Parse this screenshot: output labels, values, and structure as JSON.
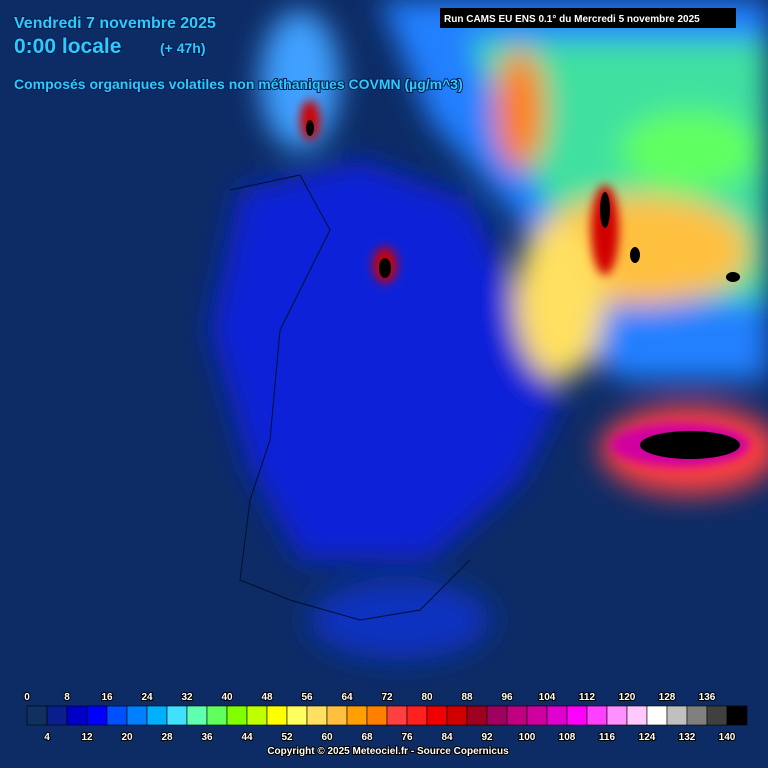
{
  "header": {
    "date": "Vendredi 7 novembre 2025",
    "time": "0:00 locale",
    "lead": "(+ 47h)",
    "run": "Run CAMS EU ENS 0.1° du Mercredi 5 novembre 2025",
    "parameter": "Composés organiques volatiles non méthaniques COVMN (µg/m^3)"
  },
  "colorbar": {
    "ticks": [
      0,
      4,
      8,
      12,
      16,
      20,
      24,
      28,
      32,
      36,
      40,
      44,
      48,
      52,
      56,
      60,
      64,
      68,
      72,
      76,
      80,
      84,
      88,
      92,
      96,
      100,
      104,
      108,
      112,
      116,
      120,
      124,
      128,
      132,
      136,
      140
    ],
    "colors": [
      "#103060",
      "#0a1f8c",
      "#0000c8",
      "#0000ff",
      "#0050ff",
      "#0080ff",
      "#00b0ff",
      "#40e0ff",
      "#60ffb0",
      "#60ff60",
      "#80ff00",
      "#c0ff00",
      "#ffff00",
      "#ffff60",
      "#ffe060",
      "#ffc040",
      "#ffa000",
      "#ff8000",
      "#ff4040",
      "#ff2020",
      "#f00000",
      "#d00000",
      "#a00020",
      "#a00060",
      "#c00080",
      "#d000a0",
      "#e000d0",
      "#ff00ff",
      "#ff40ff",
      "#ff90ff",
      "#ffc8ff",
      "#ffffff",
      "#c0c0c0",
      "#808080",
      "#404040",
      "#000000"
    ]
  },
  "footer": "Copyright © 2025 Meteociel.fr - Source Copernicus"
}
